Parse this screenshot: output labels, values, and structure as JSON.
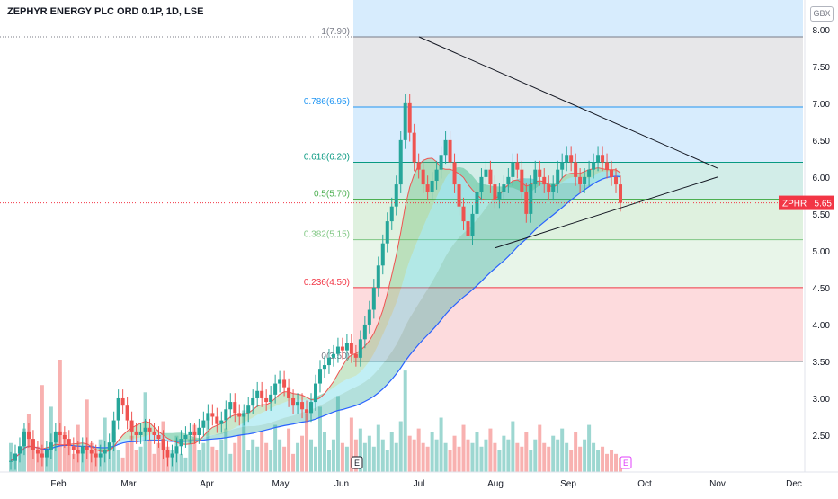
{
  "title": "ZEPHYR ENERGY PLC ORD 0.1P, 1D, LSE",
  "currency": "GBX",
  "symbol": "ZPHR",
  "last_price": "5.65",
  "colors": {
    "bull": "#26a69a",
    "bear": "#ef5350",
    "trend": "#131722",
    "price_tag": "#f23645",
    "sma_blue": "#2962ff"
  },
  "chart_data": {
    "type": "candlestick",
    "title": "ZEPHYR ENERGY PLC ORD 0.1P, 1D, LSE",
    "ylim": [
      2.0,
      8.4
    ],
    "y_ticks": [
      "8.00",
      "7.50",
      "7.00",
      "6.50",
      "6.00",
      "5.50",
      "5.00",
      "4.50",
      "4.00",
      "3.50",
      "3.00",
      "2.50"
    ],
    "x_ticks": [
      "Feb",
      "Mar",
      "Apr",
      "May",
      "Jun",
      "Jul",
      "Aug",
      "Sep",
      "Oct",
      "Nov",
      "Dec"
    ],
    "fib_levels": [
      {
        "label": "1(7.90)",
        "value": 7.9,
        "color": "#787b86"
      },
      {
        "label": "0.786(6.95)",
        "value": 6.95,
        "color": "#2196f3"
      },
      {
        "label": "0.618(6.20)",
        "value": 6.2,
        "color": "#089981"
      },
      {
        "label": "0.5(5.70)",
        "value": 5.7,
        "color": "#4caf50"
      },
      {
        "label": "0.382(5.15)",
        "value": 5.15,
        "color": "#81c784"
      },
      {
        "label": "0.236(4.50)",
        "value": 4.5,
        "color": "#f23645"
      },
      {
        "label": "0(3.50)",
        "value": 3.5,
        "color": "#787b86"
      }
    ],
    "fib_band_colors": [
      "#2196f3",
      "#787b86",
      "#2196f3",
      "#089981",
      "#4caf50",
      "#81c784",
      "#f23645"
    ],
    "triangle": [
      {
        "from": [
          6.0,
          7.9
        ],
        "to": [
          10.0,
          6.12
        ]
      },
      {
        "from": [
          7.0,
          5.04
        ],
        "to": [
          10.0,
          6.0
        ]
      }
    ],
    "event_labels": [
      "E",
      "E"
    ],
    "series": [
      {
        "name": "price",
        "values": [
          2.15,
          2.25,
          2.35,
          2.55,
          2.45,
          2.3,
          2.25,
          2.2,
          2.3,
          2.4,
          2.55,
          2.5,
          2.45,
          2.35,
          2.3,
          2.25,
          2.35,
          2.3,
          2.25,
          2.2,
          2.25,
          2.3,
          2.4,
          2.7,
          3.0,
          2.9,
          2.7,
          2.55,
          2.5,
          2.55,
          2.6,
          2.55,
          2.5,
          2.45,
          2.3,
          2.2,
          2.25,
          2.35,
          2.45,
          2.5,
          2.55,
          2.5,
          2.6,
          2.7,
          2.8,
          2.75,
          2.65,
          2.7,
          2.85,
          2.95,
          2.8,
          2.75,
          2.8,
          2.9,
          3.0,
          3.1,
          3.0,
          2.95,
          3.05,
          3.2,
          3.25,
          3.15,
          3.0,
          2.9,
          2.95,
          2.85,
          2.8,
          2.95,
          3.2,
          3.4,
          3.45,
          3.55,
          3.6,
          3.7,
          3.65,
          3.75,
          3.6,
          3.55,
          3.8,
          4.0,
          4.2,
          4.5,
          4.8,
          5.1,
          5.4,
          5.6,
          5.9,
          6.5,
          7.0,
          6.6,
          6.2,
          6.1,
          5.9,
          5.8,
          5.95,
          6.1,
          6.3,
          6.5,
          6.2,
          5.9,
          5.6,
          5.4,
          5.2,
          5.5,
          5.8,
          6.0,
          6.1,
          5.9,
          5.7,
          5.8,
          5.9,
          6.0,
          6.2,
          6.1,
          5.8,
          5.5,
          5.9,
          6.1,
          6.0,
          5.9,
          5.8,
          5.9,
          6.1,
          6.2,
          6.3,
          6.2,
          6.0,
          5.9,
          6.0,
          6.1,
          6.2,
          6.3,
          6.2,
          6.1,
          6.0,
          5.9,
          5.65
        ]
      },
      {
        "name": "volume",
        "values": [
          0.8,
          0.5,
          0.6,
          1.2,
          1.6,
          0.9,
          0.7,
          2.4,
          0.6,
          1.8,
          0.9,
          3.1,
          1.1,
          0.7,
          0.5,
          1.3,
          0.6,
          2.0,
          0.8,
          0.6,
          0.9,
          1.5,
          0.7,
          1.1,
          0.6,
          0.4,
          0.8,
          1.0,
          0.6,
          0.7,
          2.2,
          0.9,
          0.5,
          0.8,
          1.4,
          0.7,
          0.6,
          1.0,
          0.5,
          0.4,
          0.9,
          1.3,
          0.6,
          0.8,
          1.5,
          0.7,
          0.6,
          0.9,
          1.2,
          0.5,
          0.8,
          1.0,
          1.7,
          0.6,
          0.9,
          0.7,
          1.1,
          0.8,
          0.6,
          1.3,
          0.9,
          0.7,
          1.2,
          0.5,
          0.8,
          1.0,
          1.6,
          0.9,
          0.7,
          1.8,
          1.1,
          0.6,
          0.9,
          2.1,
          0.8,
          0.7,
          1.5,
          0.9,
          1.2,
          0.8,
          1.0,
          0.7,
          1.3,
          0.9,
          0.6,
          1.1,
          0.8,
          1.4,
          2.8,
          1.0,
          0.9,
          1.2,
          0.8,
          0.7,
          1.1,
          0.9,
          1.5,
          0.8,
          0.6,
          1.0,
          0.7,
          1.3,
          0.9,
          0.8,
          1.1,
          0.7,
          0.9,
          1.2,
          0.8,
          0.6,
          1.0,
          0.9,
          1.4,
          0.8,
          0.7,
          1.1,
          0.6,
          0.9,
          1.3,
          0.8,
          0.7,
          1.0,
          0.9,
          1.2,
          0.8,
          0.6,
          1.1,
          0.7,
          0.9,
          1.3,
          0.8,
          0.6,
          0.7,
          0.5,
          0.6,
          0.5,
          0.4
        ]
      }
    ]
  }
}
